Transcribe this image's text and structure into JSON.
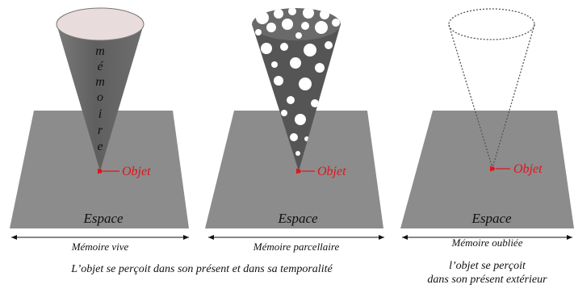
{
  "panels": [
    {
      "space_label": "Espace",
      "object_label": "Objet",
      "caption": "Mémoire vive"
    },
    {
      "space_label": "Espace",
      "object_label": "Objet",
      "caption": "Mémoire parcellaire"
    },
    {
      "space_label": "Espace",
      "object_label": "Objet",
      "caption": "Mémoire oubliée"
    }
  ],
  "cone_word": [
    "m",
    "é",
    "m",
    "o",
    "i",
    "r",
    "e"
  ],
  "statement_left": "L’objet se perçoit dans son présent et dans sa temporalité",
  "statement_right": [
    "l’objet se perçoit",
    "dans son présent extérieur"
  ],
  "colors": {
    "object": "#e0141c",
    "plane": "#8c8c8c",
    "cone": "#6e6e6e",
    "cone_top": "#e9dcdc"
  }
}
